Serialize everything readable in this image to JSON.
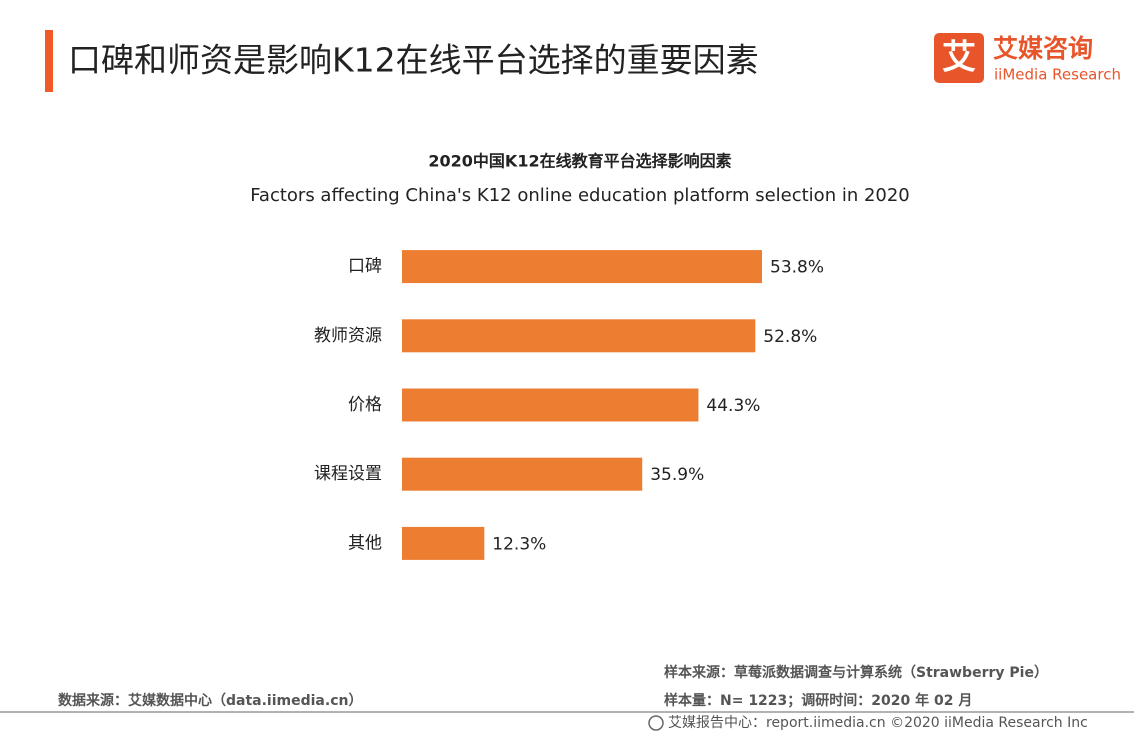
{
  "header": {
    "title": "口碑和师资是影响K12在线平台选择的重要因素",
    "logo_mark": "艾",
    "logo_name": "艾媒咨询",
    "logo_sub": "iiMedia Research"
  },
  "chart_data": {
    "type": "bar",
    "orientation": "horizontal",
    "title": "2020中国K12在线教育平台选择影响因素",
    "subtitle": "Factors affecting China's K12 online education platform selection in 2020",
    "categories": [
      "口碑",
      "教师资源",
      "价格",
      "课程设置",
      "其他"
    ],
    "values": [
      53.8,
      52.8,
      44.3,
      35.9,
      12.3
    ],
    "value_labels": [
      "53.8%",
      "52.8%",
      "44.3%",
      "35.9%",
      "12.3%"
    ],
    "color": "#ED7D31"
  },
  "footer": {
    "data_source": "数据来源：艾媒数据中心（data.iimedia.cn）",
    "sample_source": "样本来源：草莓派数据调查与计算系统（Strawberry   Pie）",
    "sample_info": "样本量：N= 1223；调研时间：2020 年 02 月",
    "copyright": "艾媒报告中心：report.iimedia.cn  ©2020  iiMedia Research  Inc"
  }
}
